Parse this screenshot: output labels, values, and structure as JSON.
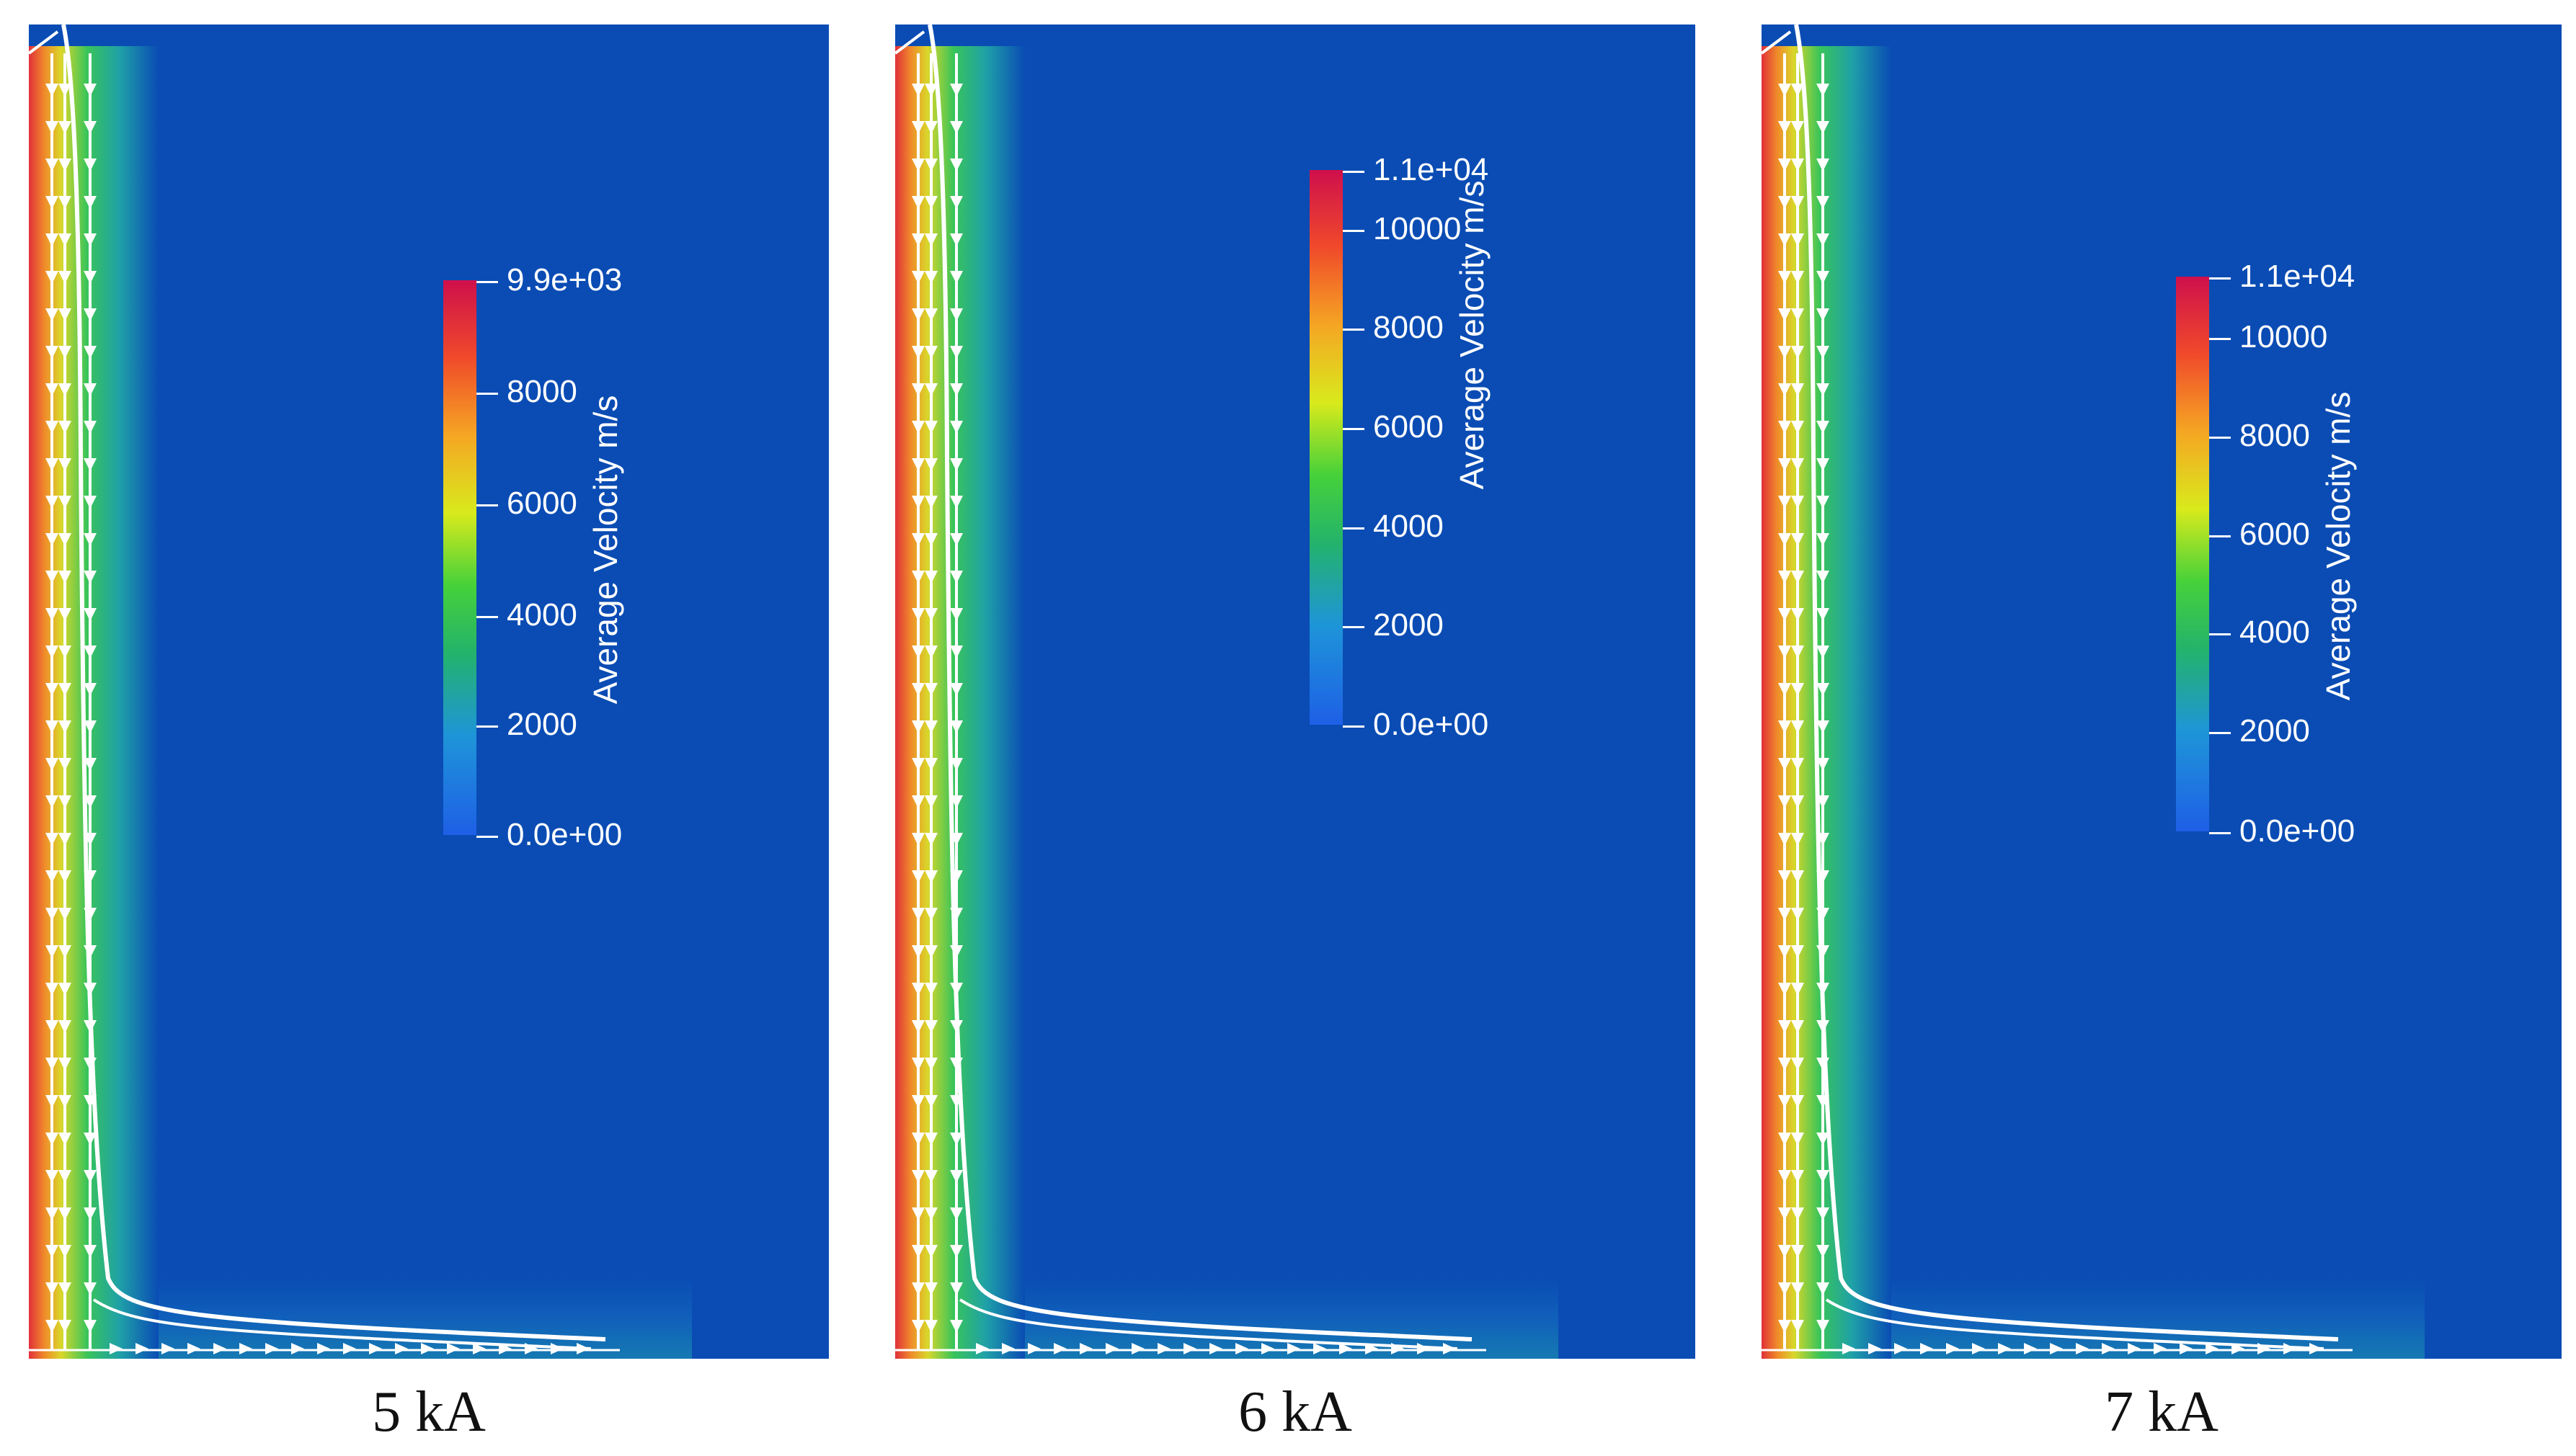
{
  "colors": {
    "background_field": "#0a4cb4",
    "streamline": "#ffffff",
    "colormap": [
      "#1e5fe6",
      "#1f8fd8",
      "#22b070",
      "#3ccf3a",
      "#d6e81a",
      "#f5a623",
      "#f04a2a",
      "#d0104a"
    ]
  },
  "panels": [
    {
      "caption": "5 kA",
      "colorbar": {
        "title": "Average Velocity m/s",
        "max_label": "9.9e+03",
        "min_label": "0.0e+00",
        "ticks": [
          "8000",
          "6000",
          "4000",
          "2000"
        ]
      }
    },
    {
      "caption": "6 kA",
      "colorbar": {
        "title": "Average Velocity m/s",
        "max_label": "1.1e+04",
        "min_label": "0.0e+00",
        "ticks": [
          "10000",
          "8000",
          "6000",
          "4000",
          "2000"
        ]
      }
    },
    {
      "caption": "7 kA",
      "colorbar": {
        "title": "Average Velocity m/s",
        "max_label": "1.1e+04",
        "min_label": "0.0e+00",
        "ticks": [
          "10000",
          "8000",
          "6000",
          "4000",
          "2000"
        ]
      }
    }
  ]
}
